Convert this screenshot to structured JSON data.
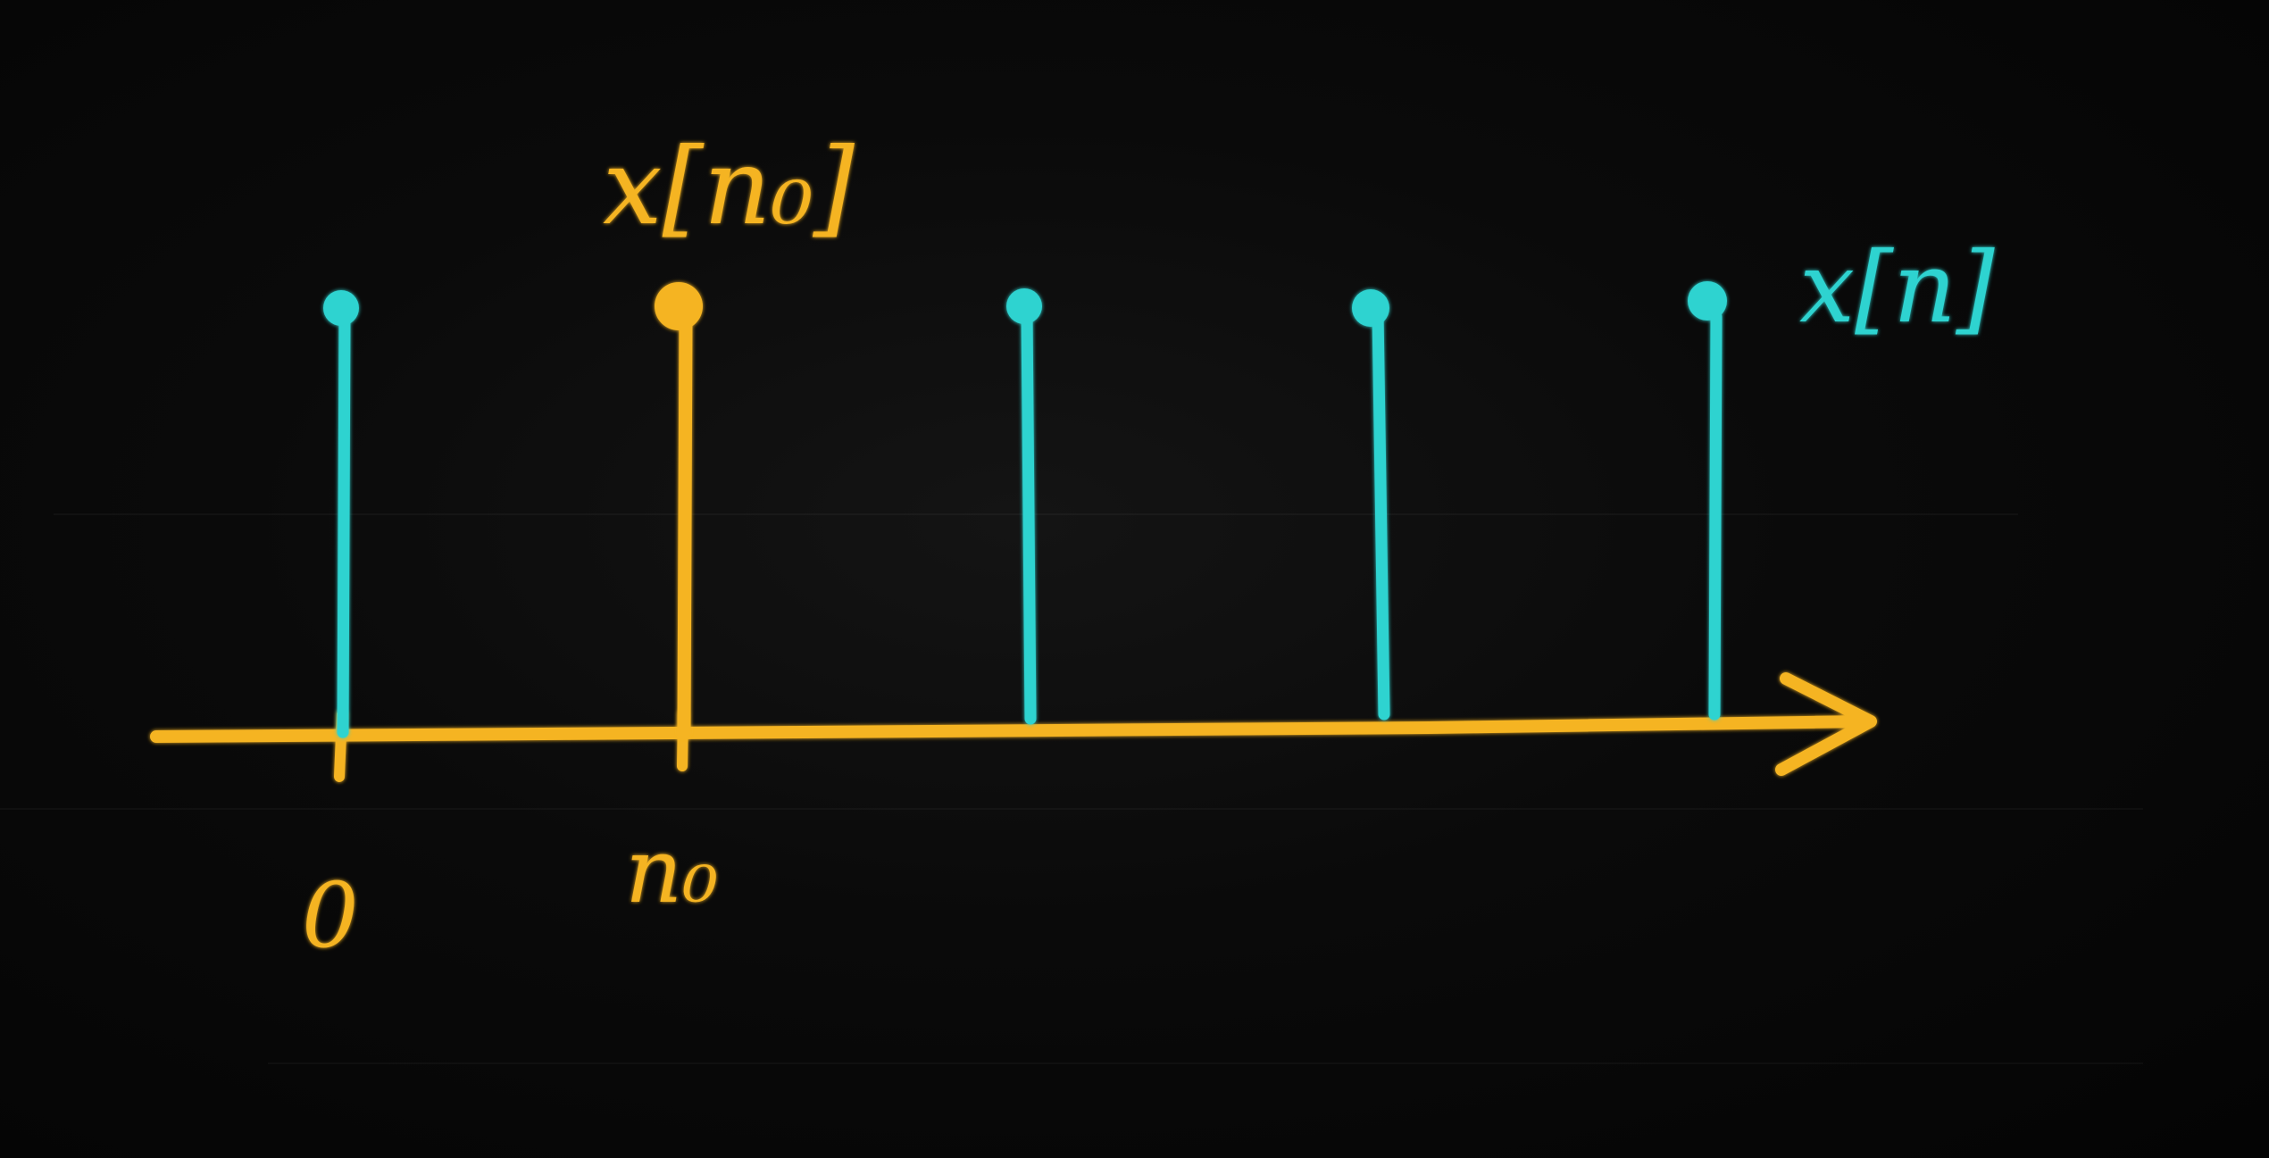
{
  "diagram": {
    "colors": {
      "background": "#050505",
      "highlight": "#f5b423",
      "sequence": "#2fd3d0"
    },
    "labels": {
      "highlight_sample": "x[n₀]",
      "sequence": "x[n]",
      "origin_tick": "0",
      "n0_tick": "n₀"
    },
    "samples": [
      {
        "index": 0,
        "highlighted": false
      },
      {
        "index": 1,
        "highlighted": true
      },
      {
        "index": 2,
        "highlighted": false
      },
      {
        "index": 3,
        "highlighted": false
      },
      {
        "index": 4,
        "highlighted": false
      }
    ]
  }
}
